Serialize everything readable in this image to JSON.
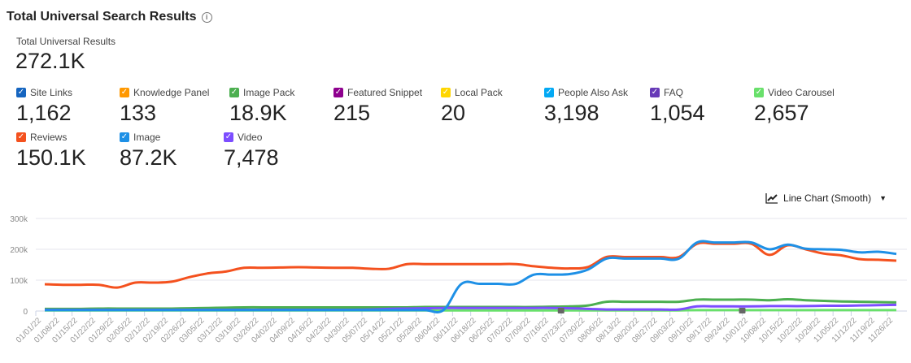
{
  "header": {
    "title": "Total Universal Search Results",
    "info_icon": "info-circle-icon"
  },
  "total": {
    "label": "Total Universal Results",
    "value": "272.1K"
  },
  "metrics": [
    {
      "label": "Site Links",
      "value": "1,162",
      "color": "#1565c0",
      "checked": true
    },
    {
      "label": "Knowledge Panel",
      "value": "133",
      "color": "#ff9800",
      "checked": true
    },
    {
      "label": "Image Pack",
      "value": "18.9K",
      "color": "#4caf50",
      "checked": true
    },
    {
      "label": "Featured Snippet",
      "value": "215",
      "color": "#8e008e",
      "checked": true
    },
    {
      "label": "Local Pack",
      "value": "20",
      "color": "#ffd600",
      "checked": true
    },
    {
      "label": "People Also Ask",
      "value": "3,198",
      "color": "#03a9f4",
      "checked": true
    },
    {
      "label": "FAQ",
      "value": "1,054",
      "color": "#673ab7",
      "checked": true
    },
    {
      "label": "Video Carousel",
      "value": "2,657",
      "color": "#69e06b",
      "checked": true
    },
    {
      "label": "Reviews",
      "value": "150.1K",
      "color": "#f4511e",
      "checked": true
    },
    {
      "label": "Image",
      "value": "87.2K",
      "color": "#1e90e6",
      "checked": true
    },
    {
      "label": "Video",
      "value": "7,478",
      "color": "#7c4dff",
      "checked": true
    }
  ],
  "chart_type_selector": {
    "label": "Line Chart (Smooth)",
    "icon": "line-chart-icon",
    "dropdown_icon": "caret-down-icon"
  },
  "chart_data": {
    "type": "line",
    "smooth": true,
    "grid": true,
    "ylim": [
      0,
      300000
    ],
    "yticks": [
      0,
      100000,
      200000,
      300000
    ],
    "ytick_labels": [
      "0",
      "100k",
      "200k",
      "300k"
    ],
    "categories": [
      "01/01/22",
      "01/08/22",
      "01/15/22",
      "01/22/22",
      "01/29/22",
      "02/05/22",
      "02/12/22",
      "02/19/22",
      "02/26/22",
      "03/05/22",
      "03/12/22",
      "03/19/22",
      "03/26/22",
      "04/02/22",
      "04/09/22",
      "04/16/22",
      "04/23/22",
      "04/30/22",
      "05/07/22",
      "05/14/22",
      "05/21/22",
      "05/28/22",
      "06/04/22",
      "06/11/22",
      "06/18/22",
      "06/25/22",
      "07/02/22",
      "07/09/22",
      "07/16/22",
      "07/23/22",
      "07/30/22",
      "08/06/22",
      "08/13/22",
      "08/20/22",
      "08/27/22",
      "09/03/22",
      "09/10/22",
      "09/17/22",
      "09/24/22",
      "10/01/22",
      "10/08/22",
      "10/15/22",
      "10/22/22",
      "10/29/22",
      "11/05/22",
      "11/12/22",
      "11/19/22",
      "11/26/22"
    ],
    "annotations": [
      "07/16/22",
      "09/24/22"
    ],
    "series": [
      {
        "name": "Video Carousel",
        "color": "#69e06b",
        "values": [
          2000,
          2000,
          2000,
          2000,
          2000,
          2000,
          2000,
          2000,
          2000,
          2000,
          2000,
          2000,
          2000,
          2000,
          2000,
          2000,
          2000,
          2000,
          2000,
          2000,
          2000,
          2000,
          2000,
          2000,
          2000,
          2000,
          2000,
          2000,
          2000,
          2000,
          2000,
          2000,
          2000,
          2000,
          2000,
          2000,
          3000,
          3000,
          3000,
          3000,
          3000,
          3000,
          3000,
          3000,
          3000,
          3000,
          3000,
          3000
        ]
      },
      {
        "name": "Image Pack",
        "color": "#4caf50",
        "values": [
          7000,
          7000,
          7000,
          8000,
          8000,
          8000,
          8000,
          8000,
          9000,
          10000,
          11000,
          12000,
          12000,
          12000,
          12000,
          12000,
          12000,
          12000,
          12000,
          12000,
          12000,
          13000,
          13000,
          13000,
          13000,
          13000,
          13000,
          13000,
          14000,
          15000,
          18000,
          30000,
          30000,
          30000,
          30000,
          30000,
          37000,
          37000,
          37000,
          37000,
          35000,
          38000,
          35000,
          33000,
          31000,
          30000,
          29000,
          28000
        ]
      },
      {
        "name": "Video",
        "color": "#7c4dff",
        "values": [
          4000,
          4000,
          4000,
          4000,
          4000,
          4000,
          4000,
          4000,
          4000,
          4000,
          4000,
          4000,
          4000,
          4000,
          4000,
          4000,
          4000,
          4000,
          5000,
          7000,
          8000,
          9000,
          10000,
          10000,
          10000,
          10000,
          10000,
          10000,
          10000,
          9000,
          7000,
          5000,
          5000,
          5000,
          5000,
          5000,
          15000,
          15000,
          15000,
          15000,
          16000,
          16000,
          16000,
          17000,
          17000,
          18000,
          19000,
          20000
        ]
      },
      {
        "name": "Reviews",
        "color": "#f4511e",
        "values": [
          87000,
          85000,
          85000,
          85000,
          76000,
          92000,
          92000,
          95000,
          110000,
          122000,
          128000,
          140000,
          140000,
          141000,
          142000,
          141000,
          140000,
          140000,
          137000,
          137000,
          152000,
          152000,
          152000,
          152000,
          152000,
          152000,
          152000,
          145000,
          140000,
          138000,
          143000,
          175000,
          175000,
          175000,
          175000,
          175000,
          218000,
          218000,
          218000,
          218000,
          182000,
          213000,
          200000,
          186000,
          180000,
          168000,
          166000,
          163000
        ]
      },
      {
        "name": "Image",
        "color": "#1e90e6",
        "values": [
          3000,
          3000,
          3000,
          3000,
          3000,
          3000,
          3000,
          3000,
          3000,
          3000,
          3000,
          3000,
          3000,
          3000,
          3000,
          3000,
          3000,
          3000,
          3000,
          3000,
          3000,
          3000,
          3000,
          88000,
          88000,
          88000,
          88000,
          118000,
          118000,
          120000,
          135000,
          170000,
          170000,
          170000,
          170000,
          170000,
          222000,
          222000,
          222000,
          222000,
          200000,
          215000,
          202000,
          200000,
          198000,
          190000,
          192000,
          185000
        ]
      }
    ]
  }
}
